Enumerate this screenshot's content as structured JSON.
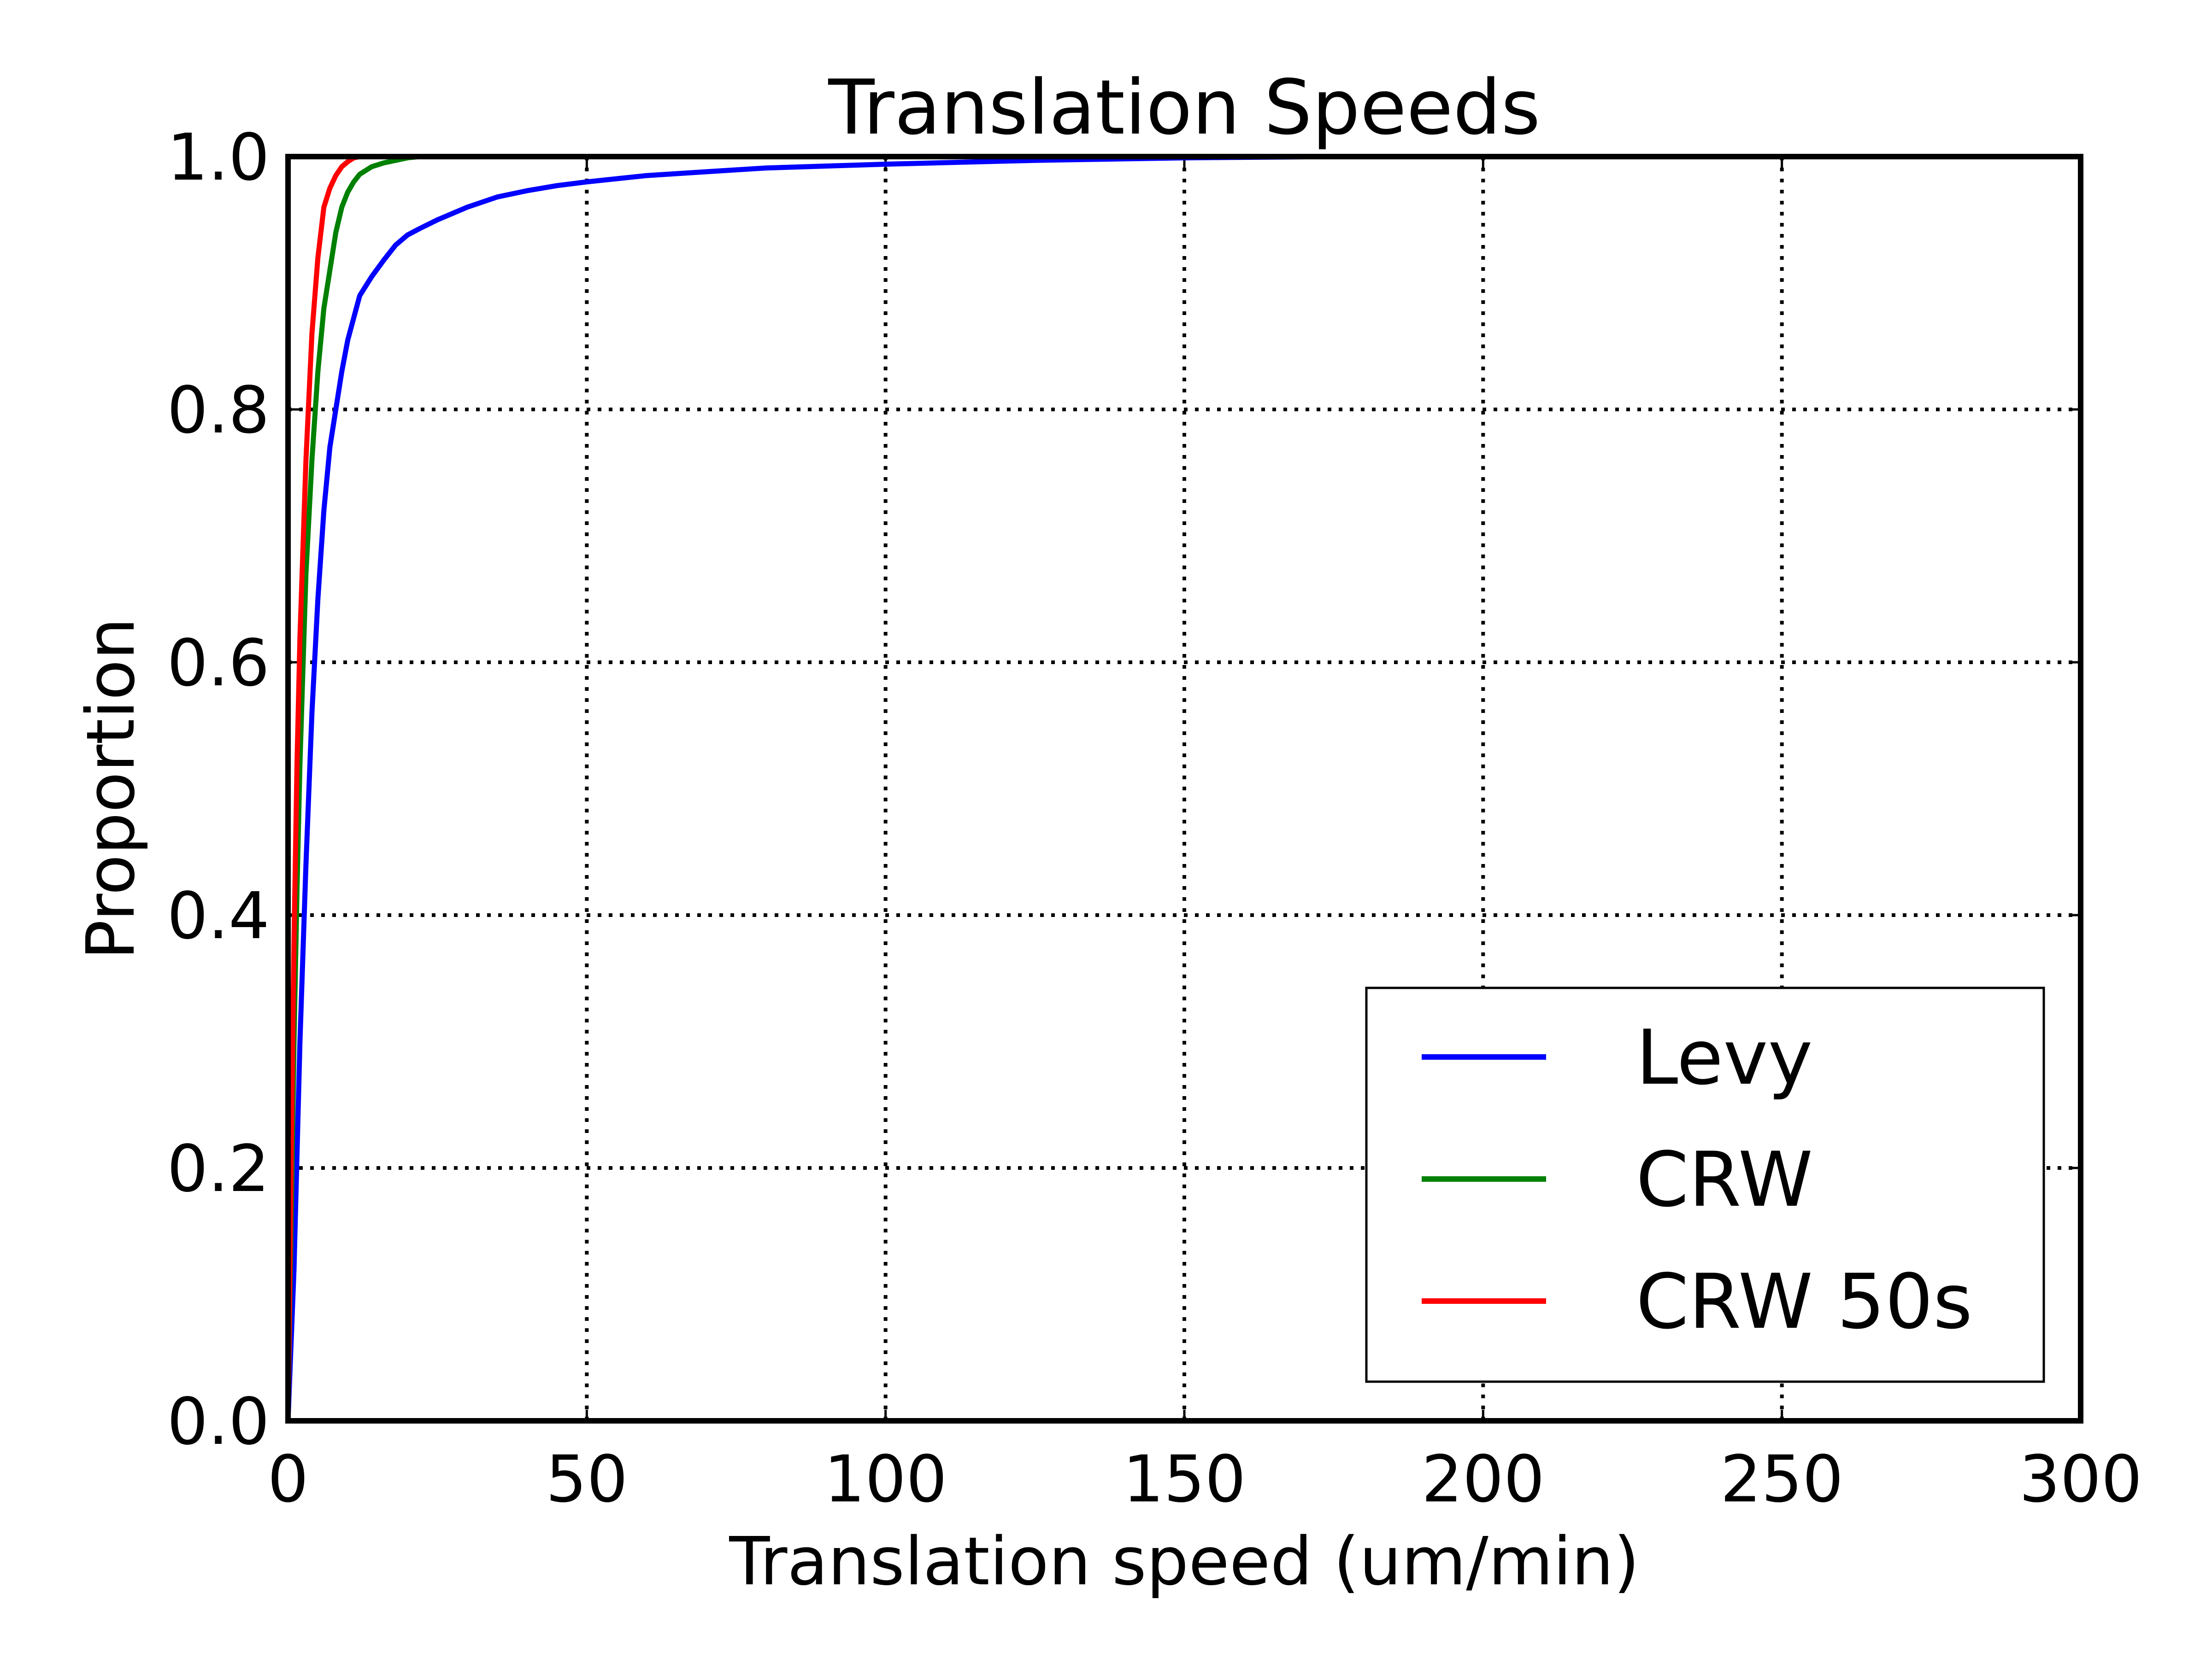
{
  "chart_data": {
    "type": "line",
    "title": "Translation Speeds",
    "xlabel": "Translation speed (um/min)",
    "ylabel": "Proportion",
    "xlim": [
      0,
      300
    ],
    "ylim": [
      0,
      1.0
    ],
    "x_ticks": [
      0,
      50,
      100,
      150,
      200,
      250,
      300
    ],
    "x_tick_labels": [
      "0",
      "50",
      "100",
      "150",
      "200",
      "250",
      "300"
    ],
    "y_ticks": [
      0,
      0.2,
      0.4,
      0.6,
      0.8,
      1.0
    ],
    "y_tick_labels": [
      "0.0",
      "0.2",
      "0.4",
      "0.6",
      "0.8",
      "1.0"
    ],
    "grid": true,
    "legend_position": "lower-right",
    "series": [
      {
        "name": "Levy",
        "color": "#0000ff",
        "x": [
          0,
          1,
          2,
          3,
          4,
          5,
          6,
          7,
          8,
          9,
          10,
          12,
          14,
          16,
          18,
          20,
          22,
          25,
          30,
          35,
          40,
          45,
          50,
          60,
          70,
          80,
          100,
          125,
          150,
          175
        ],
        "y": [
          0,
          0.12,
          0.3,
          0.44,
          0.56,
          0.65,
          0.72,
          0.77,
          0.8,
          0.83,
          0.855,
          0.89,
          0.905,
          0.918,
          0.93,
          0.938,
          0.943,
          0.95,
          0.96,
          0.968,
          0.973,
          0.977,
          0.98,
          0.985,
          0.988,
          0.991,
          0.994,
          0.997,
          0.999,
          1.0
        ]
      },
      {
        "name": "CRW",
        "color": "#008000",
        "x": [
          0,
          0.5,
          1,
          1.5,
          2,
          3,
          4,
          5,
          6,
          7,
          8,
          9,
          10,
          11,
          12,
          14,
          16,
          18,
          20,
          22
        ],
        "y": [
          0,
          0.15,
          0.3,
          0.42,
          0.52,
          0.67,
          0.76,
          0.83,
          0.88,
          0.91,
          0.94,
          0.96,
          0.972,
          0.98,
          0.986,
          0.992,
          0.995,
          0.997,
          0.999,
          1.0
        ]
      },
      {
        "name": "CRW 50s",
        "color": "#ff0000",
        "x": [
          0,
          0.5,
          1,
          1.5,
          2,
          3,
          4,
          5,
          6,
          7,
          8,
          9,
          10,
          11,
          12
        ],
        "y": [
          0,
          0.2,
          0.38,
          0.52,
          0.62,
          0.76,
          0.86,
          0.92,
          0.96,
          0.975,
          0.985,
          0.992,
          0.996,
          0.999,
          1.0
        ]
      }
    ]
  }
}
